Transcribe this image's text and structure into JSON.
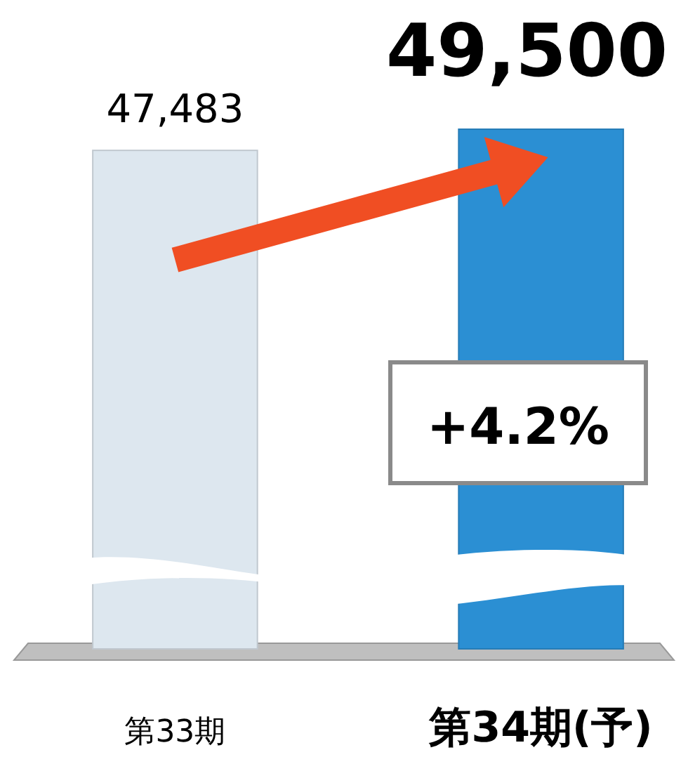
{
  "chart_data": {
    "type": "bar",
    "categories": [
      "第33期",
      "第34期(予)"
    ],
    "values": [
      47483,
      49500
    ],
    "colors": [
      "#dde7ef",
      "#2b8fd3"
    ],
    "value_labels": [
      "47,483",
      "49,500"
    ],
    "annotations": [
      "+4.2%"
    ]
  }
}
